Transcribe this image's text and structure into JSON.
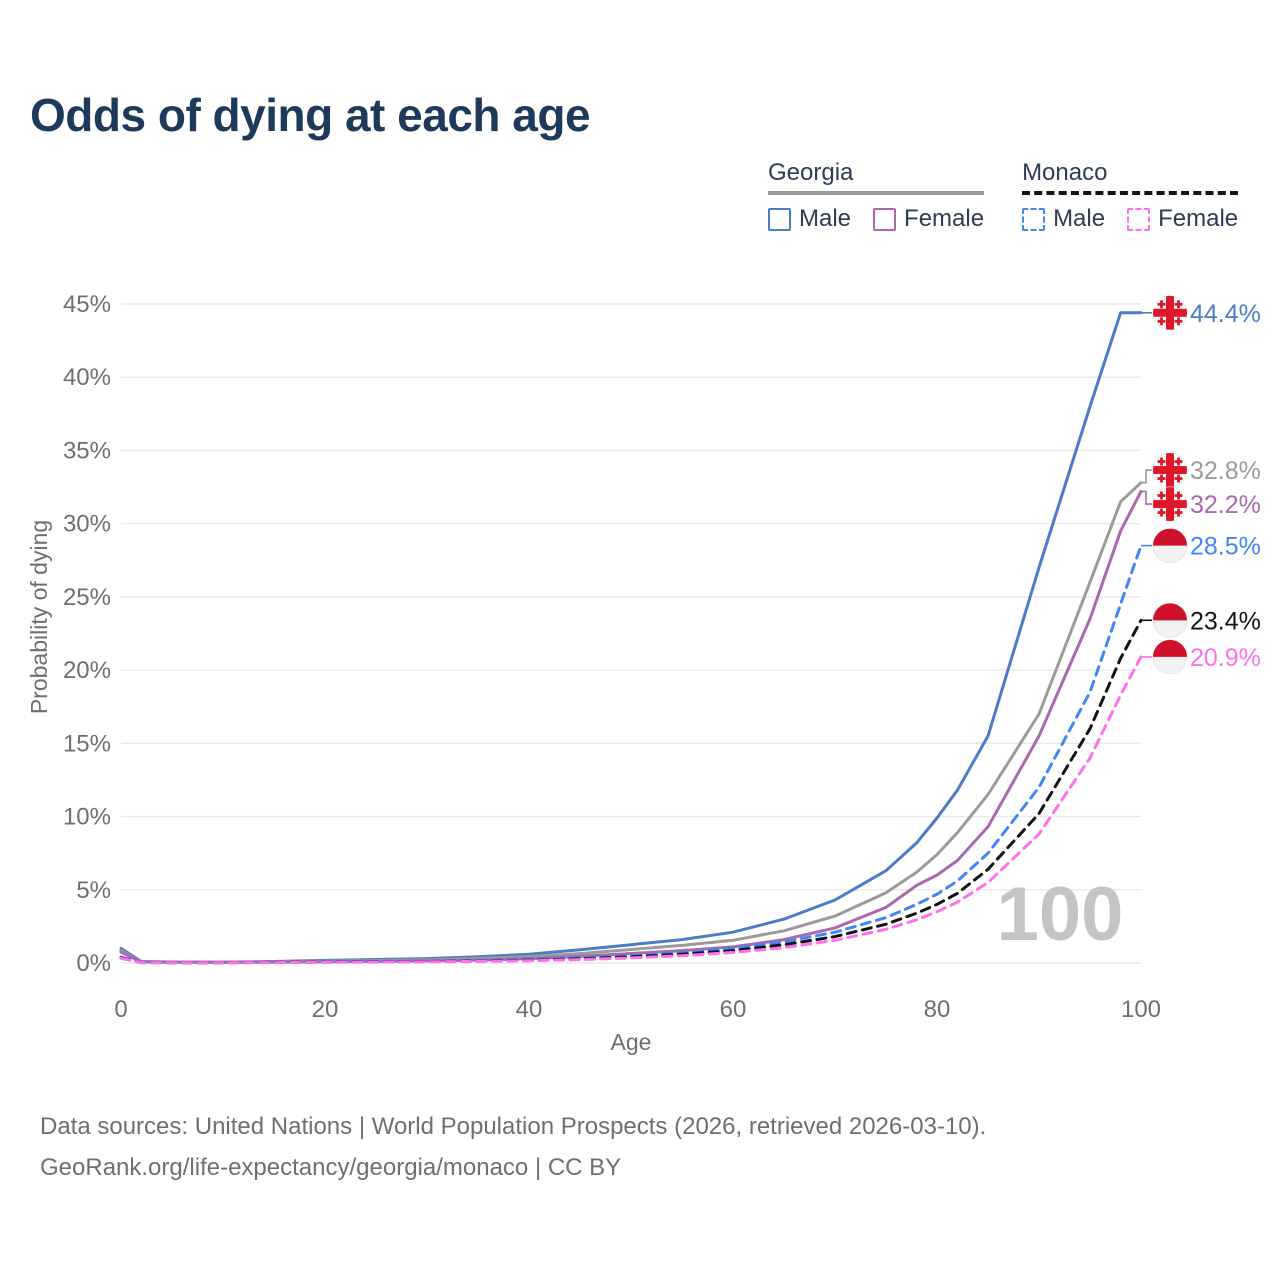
{
  "title": "Odds of dying at each age",
  "colors": {
    "title_text": "#1E3A5A",
    "axis_text": "#6F6F6F",
    "gridline": "#E9E9E9",
    "watermark_text": "#C4C4C4",
    "georgia_flag_red": "#E0162B",
    "monaco_flag_red": "#D0112B",
    "flag_white": "#F2F2F2"
  },
  "legend": {
    "groups": [
      {
        "name": "Georgia",
        "line_style": "solid",
        "line_color": "#9B9B9B",
        "items": [
          {
            "label": "Male",
            "color": "#4A7CC7",
            "dashed": false
          },
          {
            "label": "Female",
            "color": "#AA69AE",
            "dashed": false
          }
        ]
      },
      {
        "name": "Monaco",
        "line_style": "dashed",
        "line_color": "#141414",
        "items": [
          {
            "label": "Male",
            "color": "#4285F4",
            "dashed": true
          },
          {
            "label": "Female",
            "color": "#FF70EC",
            "dashed": true
          }
        ]
      }
    ]
  },
  "chart_data": {
    "type": "line",
    "title": "Odds of dying at each age",
    "xlabel": "Age",
    "ylabel": "Probability of dying",
    "xlim": [
      0,
      100
    ],
    "ylim": [
      0,
      45
    ],
    "xticks": [
      0,
      20,
      40,
      60,
      80,
      100
    ],
    "yticks": [
      "0%",
      "5%",
      "10%",
      "15%",
      "20%",
      "25%",
      "30%",
      "35%",
      "40%",
      "45%"
    ],
    "grid": true,
    "legend_position": "top-right",
    "watermark": "100",
    "x": [
      0,
      2,
      5,
      10,
      15,
      20,
      25,
      30,
      35,
      40,
      45,
      50,
      55,
      60,
      65,
      70,
      75,
      78,
      80,
      82,
      85,
      90,
      95,
      98,
      100
    ],
    "series": [
      {
        "name": "Georgia Male",
        "country": "Georgia",
        "sex": "Male",
        "color": "#4A7CC7",
        "dashed": false,
        "flag": "georgia",
        "end_label": "44.4%",
        "values": [
          1.0,
          0.1,
          0.07,
          0.06,
          0.1,
          0.18,
          0.24,
          0.3,
          0.42,
          0.6,
          0.9,
          1.25,
          1.6,
          2.1,
          3.0,
          4.3,
          6.3,
          8.2,
          9.9,
          11.8,
          15.5,
          27.0,
          38.0,
          44.4,
          44.4
        ]
      },
      {
        "name": "Georgia Both sexes",
        "country": "Georgia",
        "sex": "Both",
        "color": "#9B9B9B",
        "dashed": false,
        "flag": "georgia",
        "end_label": "32.8%",
        "values": [
          0.85,
          0.08,
          0.06,
          0.05,
          0.08,
          0.13,
          0.17,
          0.22,
          0.3,
          0.44,
          0.64,
          0.92,
          1.2,
          1.55,
          2.2,
          3.2,
          4.8,
          6.2,
          7.4,
          8.9,
          11.5,
          17.0,
          26.0,
          31.5,
          32.8
        ]
      },
      {
        "name": "Georgia Female",
        "country": "Georgia",
        "sex": "Female",
        "color": "#AA69AE",
        "dashed": false,
        "flag": "georgia",
        "end_label": "32.2%",
        "values": [
          0.75,
          0.07,
          0.05,
          0.04,
          0.06,
          0.09,
          0.11,
          0.14,
          0.2,
          0.3,
          0.45,
          0.65,
          0.85,
          1.1,
          1.6,
          2.4,
          3.8,
          5.3,
          6.0,
          7.0,
          9.3,
          15.5,
          23.5,
          29.5,
          32.2
        ]
      },
      {
        "name": "Monaco Male",
        "country": "Monaco",
        "sex": "Male",
        "color": "#4285F4",
        "dashed": true,
        "flag": "monaco",
        "end_label": "28.5%",
        "values": [
          0.4,
          0.04,
          0.03,
          0.03,
          0.05,
          0.08,
          0.1,
          0.12,
          0.16,
          0.23,
          0.34,
          0.5,
          0.7,
          1.0,
          1.45,
          2.1,
          3.1,
          4.0,
          4.7,
          5.6,
          7.5,
          12.0,
          18.5,
          24.5,
          28.5
        ]
      },
      {
        "name": "Monaco Both sexes",
        "country": "Monaco",
        "sex": "Both",
        "color": "#141414",
        "dashed": true,
        "flag": "monaco",
        "end_label": "23.4%",
        "values": [
          0.35,
          0.03,
          0.02,
          0.02,
          0.04,
          0.06,
          0.08,
          0.1,
          0.13,
          0.19,
          0.28,
          0.42,
          0.6,
          0.85,
          1.25,
          1.8,
          2.65,
          3.4,
          4.0,
          4.75,
          6.4,
          10.2,
          16.0,
          20.8,
          23.4
        ]
      },
      {
        "name": "Monaco Female",
        "country": "Monaco",
        "sex": "Female",
        "color": "#FF70EC",
        "dashed": true,
        "flag": "monaco",
        "end_label": "20.9%",
        "values": [
          0.32,
          0.03,
          0.02,
          0.02,
          0.03,
          0.05,
          0.06,
          0.08,
          0.11,
          0.16,
          0.23,
          0.35,
          0.5,
          0.72,
          1.05,
          1.55,
          2.3,
          2.95,
          3.5,
          4.15,
          5.5,
          8.8,
          14.0,
          18.3,
          20.9
        ]
      }
    ]
  },
  "footer": {
    "line1": "Data sources: United Nations | World Population Prospects (2026, retrieved 2026-03-10).",
    "line2": "GeoRank.org/life-expectancy/georgia/monaco | CC BY"
  }
}
